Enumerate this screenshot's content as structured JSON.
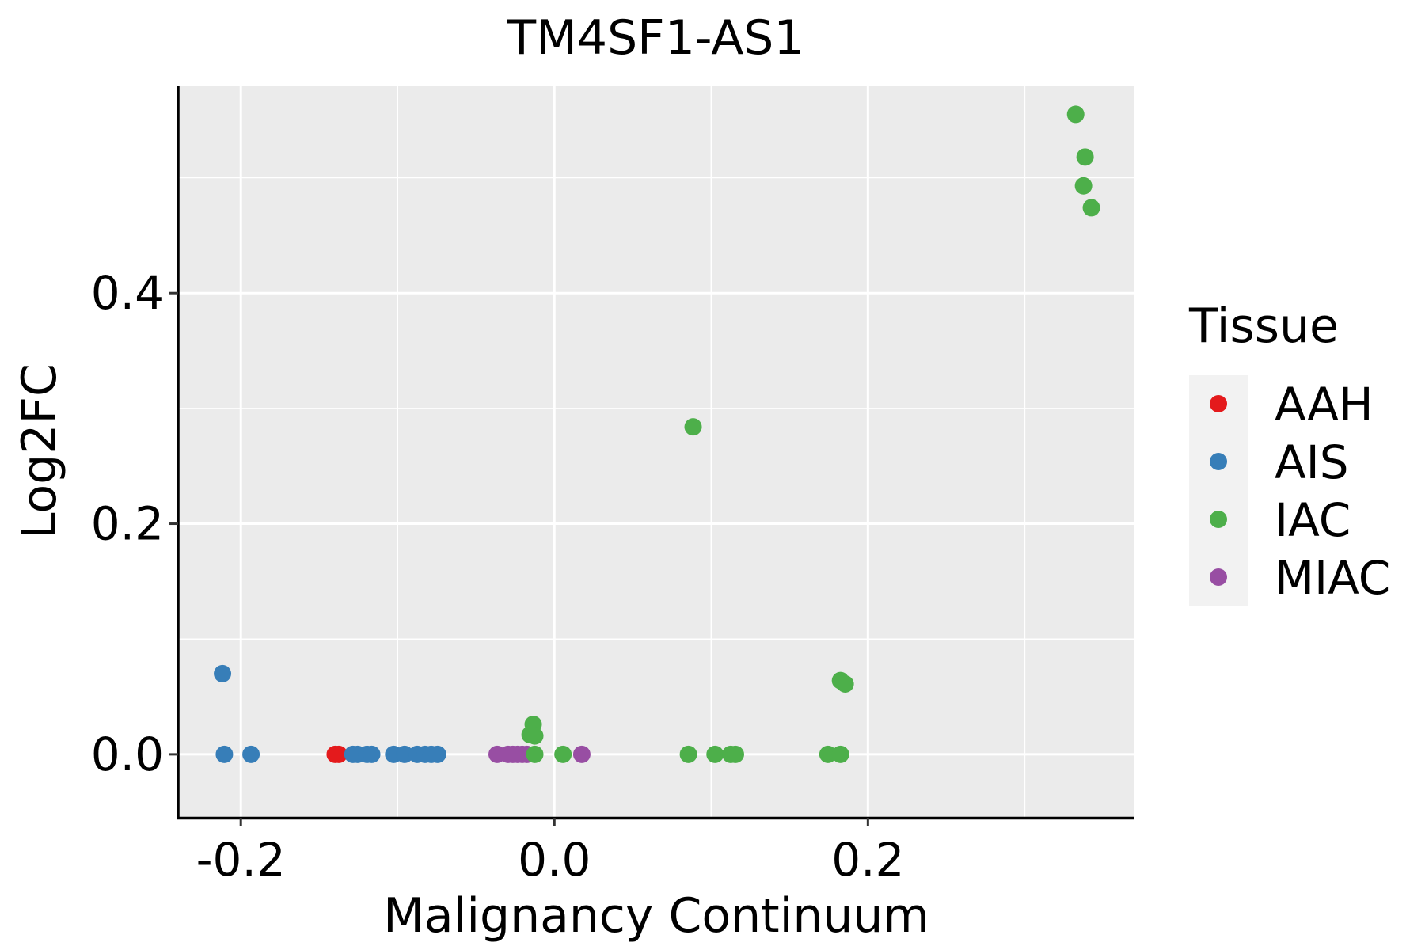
{
  "chart_data": {
    "type": "scatter",
    "title": "TM4SF1-AS1",
    "xlabel": "Malignancy Continuum",
    "ylabel": "Log2FC",
    "xlim": [
      -0.24,
      0.37
    ],
    "ylim": [
      -0.055,
      0.58
    ],
    "x_ticks": [
      -0.2,
      0.0,
      0.2
    ],
    "x_tick_labels": [
      "-0.2",
      "0.0",
      "0.2"
    ],
    "y_ticks": [
      0.0,
      0.2,
      0.4
    ],
    "y_tick_labels": [
      "0.0",
      "0.2",
      "0.4"
    ],
    "x_minor": [
      -0.1,
      0.1,
      0.3
    ],
    "y_minor": [
      0.1,
      0.3,
      0.5
    ],
    "grid": true,
    "panel_color": "#EBEBEB",
    "legend": {
      "title": "Tissue",
      "position": "right",
      "entries": [
        {
          "label": "AAH",
          "color": "#E41A1C"
        },
        {
          "label": "AIS",
          "color": "#377EB8"
        },
        {
          "label": "IAC",
          "color": "#4DAF4A"
        },
        {
          "label": "MIAC",
          "color": "#984EA3"
        }
      ]
    },
    "series": [
      {
        "name": "AAH",
        "color": "#E41A1C",
        "points": [
          [
            -0.1398,
            0.0
          ],
          [
            -0.1375,
            0.0
          ]
        ]
      },
      {
        "name": "AIS",
        "color": "#377EB8",
        "points": [
          [
            -0.2117,
            0.07
          ],
          [
            -0.2105,
            0.0
          ],
          [
            -0.1935,
            0.0
          ],
          [
            -0.1285,
            0.0
          ],
          [
            -0.1255,
            0.0
          ],
          [
            -0.1195,
            0.0
          ],
          [
            -0.1165,
            0.0
          ],
          [
            -0.1025,
            0.0
          ],
          [
            -0.0955,
            0.0
          ],
          [
            -0.0875,
            0.0
          ],
          [
            -0.0825,
            0.0
          ],
          [
            -0.0785,
            0.0
          ],
          [
            -0.0745,
            0.0
          ]
        ]
      },
      {
        "name": "MIAC",
        "color": "#984EA3",
        "points": [
          [
            -0.0365,
            0.0
          ],
          [
            -0.0295,
            0.0
          ],
          [
            -0.0265,
            0.0
          ],
          [
            -0.0235,
            0.0
          ],
          [
            -0.0205,
            0.0
          ],
          [
            -0.0175,
            0.0
          ],
          [
            0.0175,
            0.0
          ]
        ]
      },
      {
        "name": "IAC",
        "color": "#4DAF4A",
        "points": [
          [
            -0.0155,
            0.017
          ],
          [
            -0.0135,
            0.026
          ],
          [
            -0.0125,
            0.016
          ],
          [
            -0.0125,
            0.0
          ],
          [
            0.0055,
            0.0
          ],
          [
            0.0855,
            0.0
          ],
          [
            0.0885,
            0.284
          ],
          [
            0.1025,
            0.0
          ],
          [
            0.1125,
            0.0
          ],
          [
            0.1155,
            0.0
          ],
          [
            0.1745,
            0.0
          ],
          [
            0.1825,
            0.064
          ],
          [
            0.1825,
            0.0
          ],
          [
            0.1855,
            0.061
          ],
          [
            0.3325,
            0.555
          ],
          [
            0.3375,
            0.493
          ],
          [
            0.3385,
            0.518
          ],
          [
            0.3425,
            0.474
          ]
        ]
      }
    ]
  }
}
